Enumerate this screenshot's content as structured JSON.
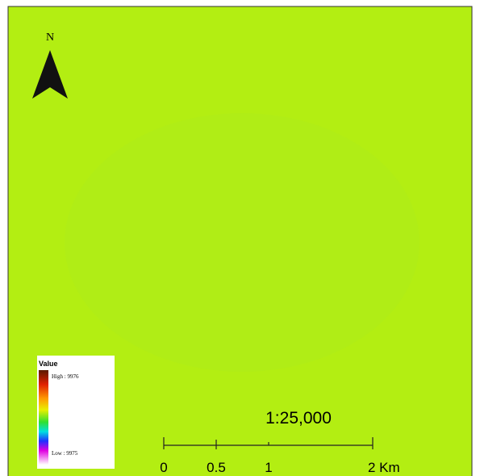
{
  "north_arrow": {
    "label": "N"
  },
  "legend": {
    "title": "Value",
    "high_label": "High : 9976",
    "low_label": "Low : 9975"
  },
  "scale": {
    "ratio": "1:25,000",
    "bar_labels": [
      "0",
      "0.5",
      "1",
      "2 Km"
    ]
  }
}
